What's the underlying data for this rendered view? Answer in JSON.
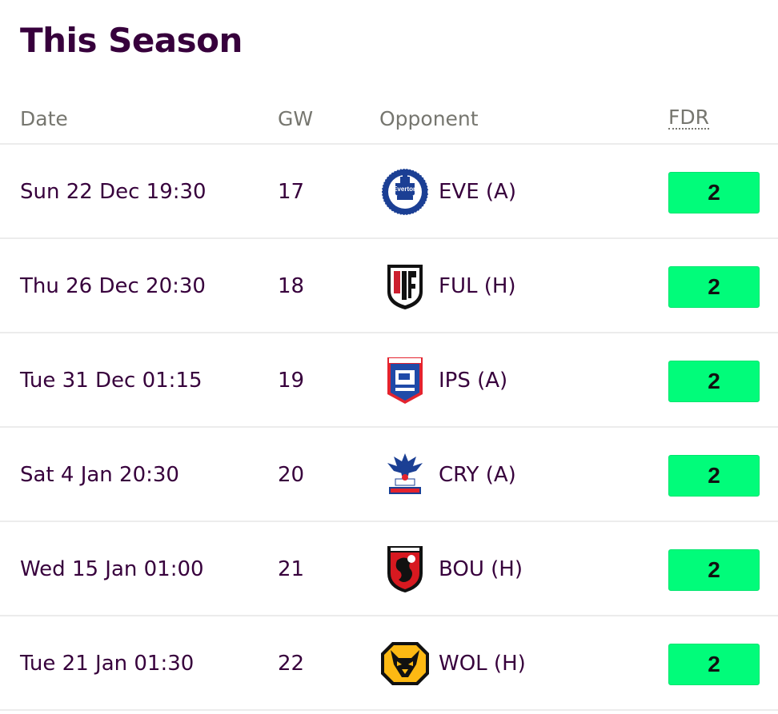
{
  "section": {
    "title": "This Season"
  },
  "table": {
    "headers": {
      "date": "Date",
      "gw": "GW",
      "opponent": "Opponent",
      "fdr": "FDR"
    },
    "rows": [
      {
        "date": "Sun 22 Dec 19:30",
        "gw": "17",
        "opponent": "EVE (A)",
        "badge": "everton-crest",
        "fdr": "2"
      },
      {
        "date": "Thu 26 Dec 20:30",
        "gw": "18",
        "opponent": "FUL (H)",
        "badge": "fulham-crest",
        "fdr": "2"
      },
      {
        "date": "Tue 31 Dec 01:15",
        "gw": "19",
        "opponent": "IPS (A)",
        "badge": "ipswich-crest",
        "fdr": "2"
      },
      {
        "date": "Sat 4 Jan 20:30",
        "gw": "20",
        "opponent": "CRY (A)",
        "badge": "crystal-palace-crest",
        "fdr": "2"
      },
      {
        "date": "Wed 15 Jan 01:00",
        "gw": "21",
        "opponent": "BOU (H)",
        "badge": "bournemouth-crest",
        "fdr": "2"
      },
      {
        "date": "Tue 21 Jan 01:30",
        "gw": "22",
        "opponent": "WOL (H)",
        "badge": "wolves-crest",
        "fdr": "2"
      }
    ]
  },
  "colors": {
    "text": "#37003c",
    "header": "#76766f",
    "fdr_easy": "#01fc7a",
    "divider": "#ececec"
  }
}
